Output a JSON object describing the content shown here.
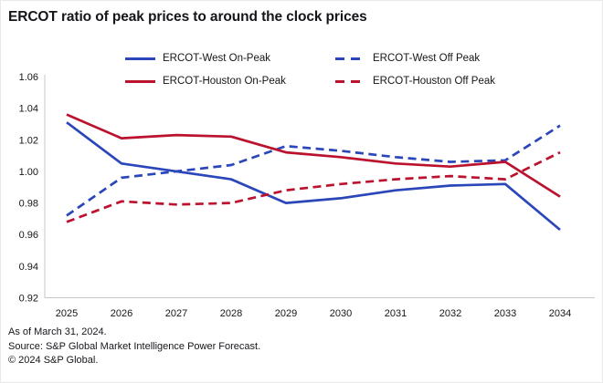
{
  "title": "ERCOT ratio of peak prices to around the clock prices",
  "colors": {
    "west": "#2B46B9",
    "houston": "#BB122E",
    "axis": "#c6c6c6",
    "text": "#15161a"
  },
  "chart_data": {
    "type": "line",
    "title": "ERCOT ratio of peak prices to around the clock prices",
    "x": [
      2025,
      2026,
      2027,
      2028,
      2029,
      2030,
      2031,
      2032,
      2033,
      2034
    ],
    "series": [
      {
        "name": "ERCOT-West On-Peak",
        "color_key": "west",
        "style": "solid",
        "values": [
          1.031,
          1.005,
          1.0,
          0.995,
          0.98,
          0.983,
          0.988,
          0.991,
          0.992,
          0.963
        ]
      },
      {
        "name": "ERCOT-West Off Peak",
        "color_key": "west",
        "style": "dashed",
        "values": [
          0.972,
          0.996,
          1.0,
          1.004,
          1.016,
          1.013,
          1.009,
          1.006,
          1.007,
          1.029
        ]
      },
      {
        "name": "ERCOT-Houston On-Peak",
        "color_key": "houston",
        "style": "solid",
        "values": [
          1.036,
          1.021,
          1.023,
          1.022,
          1.012,
          1.009,
          1.005,
          1.003,
          1.006,
          0.984
        ]
      },
      {
        "name": "ERCOT-Houston Off Peak",
        "color_key": "houston",
        "style": "dashed",
        "values": [
          0.968,
          0.981,
          0.979,
          0.98,
          0.988,
          0.992,
          0.995,
          0.997,
          0.995,
          1.012
        ]
      }
    ],
    "xlabel": "",
    "ylabel": "",
    "ylim": [
      0.92,
      1.06
    ],
    "y_step": 0.02,
    "y_tick_labels": [
      "0.92",
      "0.94",
      "0.96",
      "0.98",
      "1.00",
      "1.02",
      "1.04",
      "1.06"
    ],
    "grid": false,
    "legend_position": "top"
  },
  "footer": {
    "as_of": "As of March 31, 2024.",
    "source": "Source: S&P Global Market Intelligence Power Forecast.",
    "copyright": "© 2024 S&P Global."
  }
}
